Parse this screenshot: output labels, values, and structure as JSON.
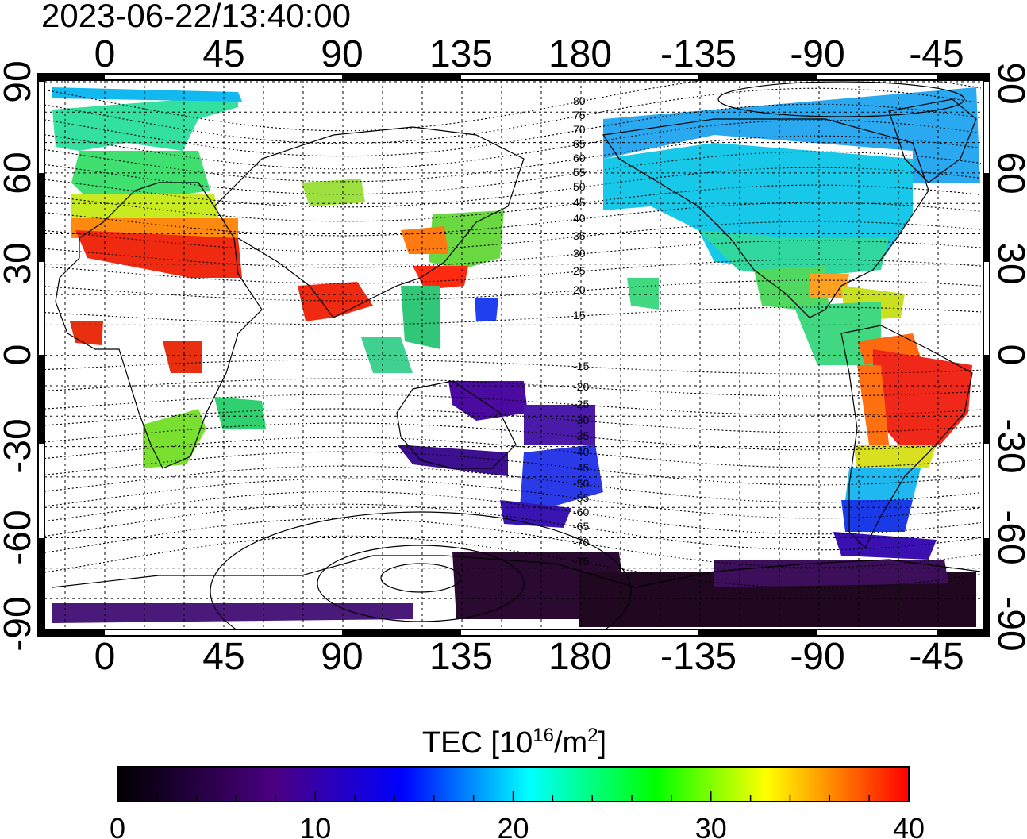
{
  "timestamp": "2023-06-22/13:40:00",
  "top_lon_labels": [
    "0",
    "45",
    "90",
    "135",
    "180",
    "-135",
    "-90",
    "-45"
  ],
  "bottom_lon_labels": [
    "0",
    "45",
    "90",
    "135",
    "180",
    "-135",
    "-90",
    "-45"
  ],
  "left_lat_labels": [
    "90",
    "60",
    "30",
    "0",
    "-30",
    "-60",
    "-90"
  ],
  "right_lat_labels": [
    "90",
    "60",
    "30",
    "0",
    "-30",
    "-60",
    "-90"
  ],
  "contour_labels": [
    "80",
    "75",
    "70",
    "65",
    "60",
    "55",
    "50",
    "45",
    "40",
    "35",
    "30",
    "25",
    "20",
    "15",
    "-15",
    "-20",
    "-25",
    "-30",
    "-35",
    "-40",
    "-45",
    "-50",
    "-55",
    "-60",
    "-65",
    "-70",
    "-75"
  ],
  "colorbar": {
    "title_prefix": "TEC  [10",
    "title_exp1": "16",
    "title_mid": "/m",
    "title_exp2": "2",
    "title_suffix": "]",
    "tick_labels": [
      "0",
      "10",
      "20",
      "30",
      "40"
    ],
    "min": 0,
    "max": 40,
    "stops": [
      "#000000",
      "#4b0082",
      "#0000ff",
      "#00ffff",
      "#00ff00",
      "#ffff00",
      "#ff0000"
    ]
  },
  "colors": {
    "background": "#ffffff",
    "frame": "#000000",
    "grid": "#000000"
  }
}
